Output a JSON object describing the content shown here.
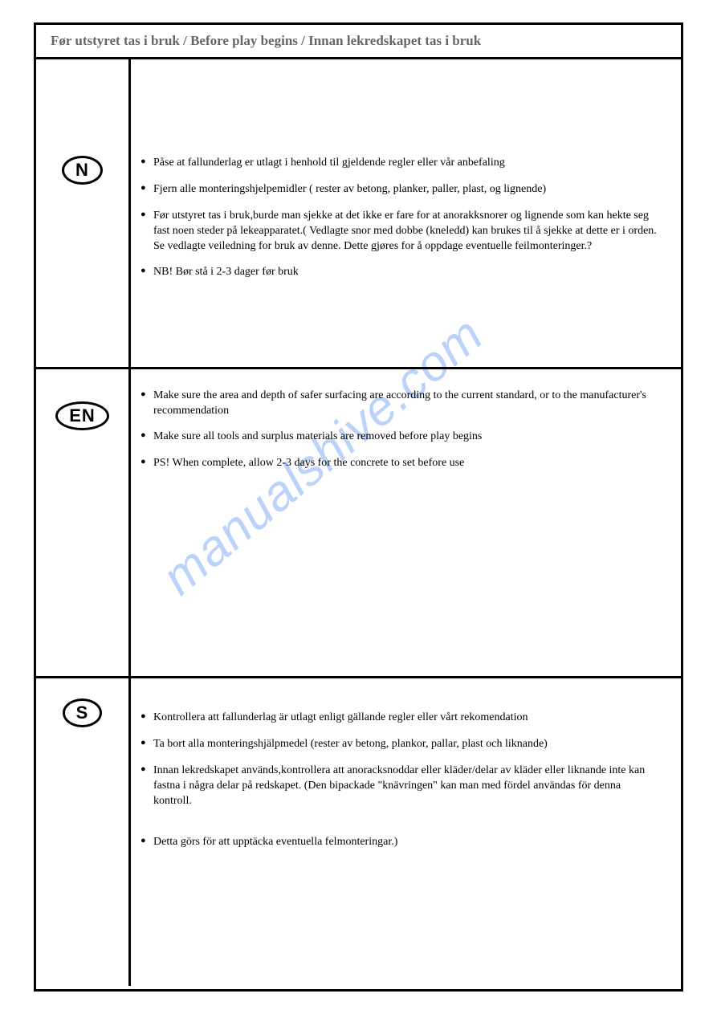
{
  "header": {
    "title": "Før utstyret tas i bruk / Before play begins /  Innan lekredskapet tas i bruk"
  },
  "watermark": "manualshive.com",
  "sections": [
    {
      "lang_label": "N",
      "items": [
        "Påse at fallunderlag er utlagt i henhold til gjeldende regler eller vår anbefaling",
        "Fjern alle monteringshjelpemidler ( rester av betong, planker, paller, plast, og lignende)",
        "Før utstyret tas i bruk,burde man sjekke at det ikke er fare for at anorakksnorer og lignende som kan  hekte seg  fast noen steder på lekeapparatet.( Vedlagte snor med dobbe (kneledd) kan brukes til  å sjekke at dette er i orden. Se vedlagte veiledning for bruk av denne. Dette gjøres for å oppdage eventuelle feilmonteringer.?",
        "NB! Bør stå i 2-3 dager før bruk"
      ]
    },
    {
      "lang_label": "EN",
      "items": [
        "Make sure the area and depth of safer surfacing are according to the current standard, or to the manufacturer's recommendation",
        "Make sure all tools and surplus materials are removed before play begins",
        "PS! When complete, allow 2-3 days for the concrete to set before use"
      ]
    },
    {
      "lang_label": "S",
      "items": [
        "Kontrollera att fallunderlag är utlagt enligt gällande regler eller vårt rekomendation",
        "Ta bort alla monteringshjälpmedel (rester av betong, plankor, pallar, plast och liknande)",
        "Innan lekredskapet används,kontrollera att anoracksnoddar eller kläder/delar av kläder eller liknande inte kan fastna i några delar på redskapet. (Den bipackade \"knävringen\" kan man med fördel användas för denna kontroll.",
        "Detta görs för att upptäcka eventuella felmonteringar.)"
      ]
    }
  ]
}
